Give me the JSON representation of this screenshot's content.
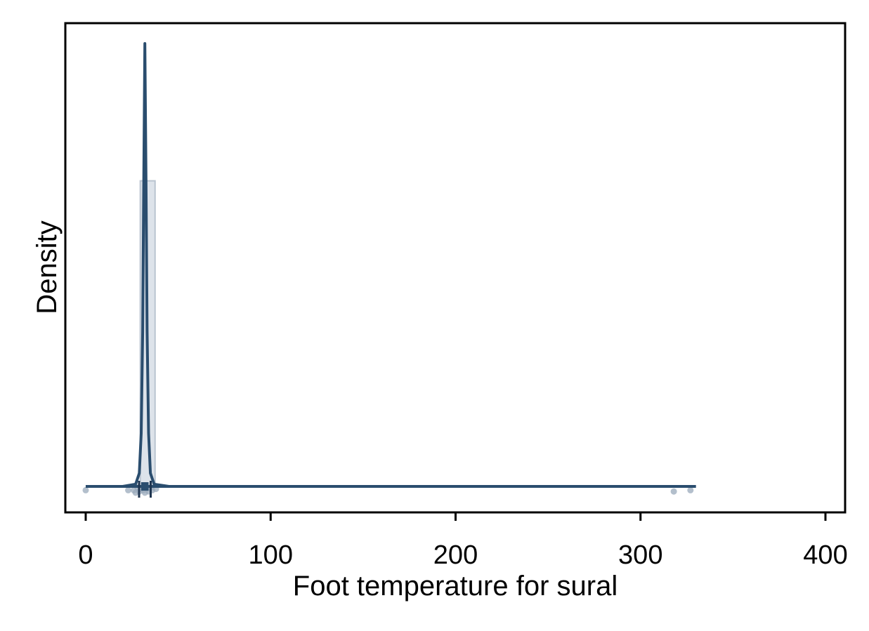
{
  "chart_data": {
    "type": "histogram-density-boxplot",
    "xlabel": "Foot temperature for sural",
    "ylabel": "Density",
    "xlim": [
      -10,
      410
    ],
    "x_ticks": [
      0,
      100,
      200,
      300,
      400
    ],
    "y_ticks": [],
    "grid": false,
    "colors": {
      "series": "#2a4d6e",
      "histogram_fill": "#dde3ea",
      "histogram_edge": "#b9c4d0",
      "points": "#9aaabb",
      "frame": "#000000"
    },
    "histogram": {
      "bins": [
        {
          "x_start": 29.5,
          "x_end": 37.5,
          "density": 0.69
        }
      ]
    },
    "density_curve": {
      "x": [
        0,
        20,
        27,
        29,
        30,
        30.8,
        31.4,
        32.0,
        32.6,
        33.2,
        34.0,
        35.0,
        37.0,
        45,
        100,
        200,
        330
      ],
      "y": [
        0.0,
        0.0,
        0.005,
        0.03,
        0.12,
        0.35,
        0.7,
        1.0,
        0.7,
        0.35,
        0.12,
        0.03,
        0.005,
        0.0,
        0.0,
        0.0,
        0.0
      ]
    },
    "boxplot": {
      "whisker_low": 1,
      "q1": 30,
      "median": 32,
      "q3": 34,
      "whisker_high": 325
    },
    "points": [
      {
        "x": 0,
        "y": -0.03
      },
      {
        "x": 23,
        "y": -0.03
      },
      {
        "x": 26,
        "y": -0.03
      },
      {
        "x": 27,
        "y": -0.05
      },
      {
        "x": 28,
        "y": -0.01
      },
      {
        "x": 29,
        "y": -0.04
      },
      {
        "x": 30,
        "y": -0.02
      },
      {
        "x": 31,
        "y": -0.03
      },
      {
        "x": 32,
        "y": -0.05
      },
      {
        "x": 33,
        "y": -0.02
      },
      {
        "x": 34,
        "y": -0.04
      },
      {
        "x": 35,
        "y": -0.01
      },
      {
        "x": 36,
        "y": -0.03
      },
      {
        "x": 38,
        "y": -0.02
      },
      {
        "x": 318,
        "y": -0.04
      },
      {
        "x": 327,
        "y": -0.03
      }
    ]
  }
}
